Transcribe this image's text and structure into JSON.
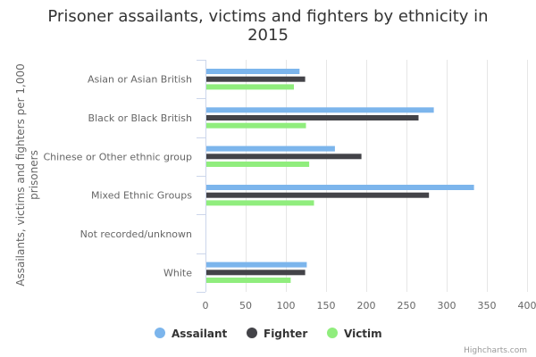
{
  "chart_data": {
    "type": "bar",
    "orientation": "horizontal",
    "title": "Prisoner assailants, victims and fighters by ethnicity in 2015",
    "title_lines": [
      "Prisoner assailants, victims and fighters by ethnicity in",
      "2015"
    ],
    "xlabel": "",
    "ylabel": "Assailants, victims and fighters per 1,000 prisoners",
    "ylabel_lines": [
      "Assailants, victims and fighters per 1,000",
      "prisoners"
    ],
    "categories": [
      "Asian or Asian British",
      "Black or Black British",
      "Chinese or Other ethnic group",
      "Mixed Ethnic Groups",
      "Not recorded/unknown",
      "White"
    ],
    "series": [
      {
        "name": "Assailant",
        "color": "#7cb5ec",
        "values": [
          117,
          284,
          161,
          334,
          0,
          126
        ]
      },
      {
        "name": "Fighter",
        "color": "#434348",
        "values": [
          124,
          265,
          194,
          278,
          0,
          124
        ]
      },
      {
        "name": "Victim",
        "color": "#90ed7d",
        "values": [
          110,
          125,
          129,
          135,
          0,
          106
        ]
      }
    ],
    "xlim": [
      0,
      400
    ],
    "ticks": [
      "0",
      "50",
      "100",
      "150",
      "200",
      "250",
      "300",
      "350",
      "400"
    ],
    "grid": true,
    "legend_position": "bottom-center"
  },
  "credit": "Highcharts.com"
}
